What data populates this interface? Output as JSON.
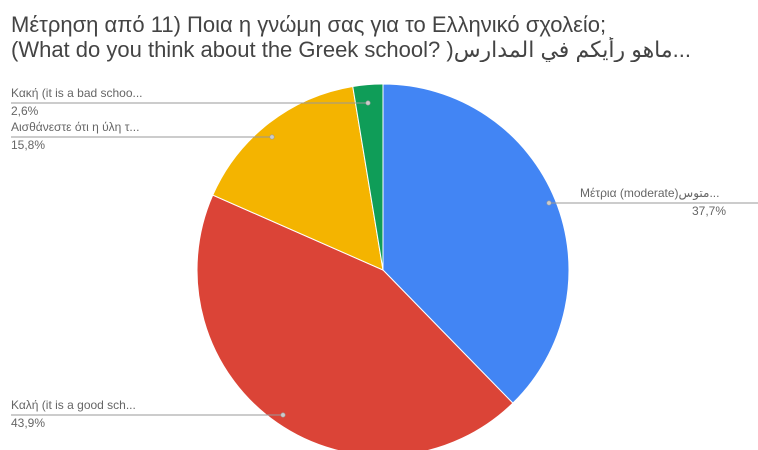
{
  "chart_data": {
    "type": "pie",
    "title_lines": [
      "Μέτρηση από 11)  Ποια η γνώμη σας για το Ελληνικό σχολείο;",
      "(What do you think about the Greek school? )ماهو رأيكم في المدارس..."
    ],
    "slices": [
      {
        "label": "Μέτρια  (moderate)متوس...",
        "percent_label": "37,7%",
        "value": 37.7,
        "color": "#4285f4"
      },
      {
        "label": "Καλή   (it is a good sch...",
        "percent_label": "43,9%",
        "value": 43.9,
        "color": "#db4437"
      },
      {
        "label": "Αισθάνεστε ότι η ύλη τ...",
        "percent_label": "15,8%",
        "value": 15.8,
        "color": "#f4b400"
      },
      {
        "label": "Κακή  (it is a bad schoo...",
        "percent_label": "2,6%",
        "value": 2.6,
        "color": "#0f9d58"
      }
    ],
    "start_angle": "12 o'clock",
    "direction": "clockwise",
    "legend": "none"
  }
}
